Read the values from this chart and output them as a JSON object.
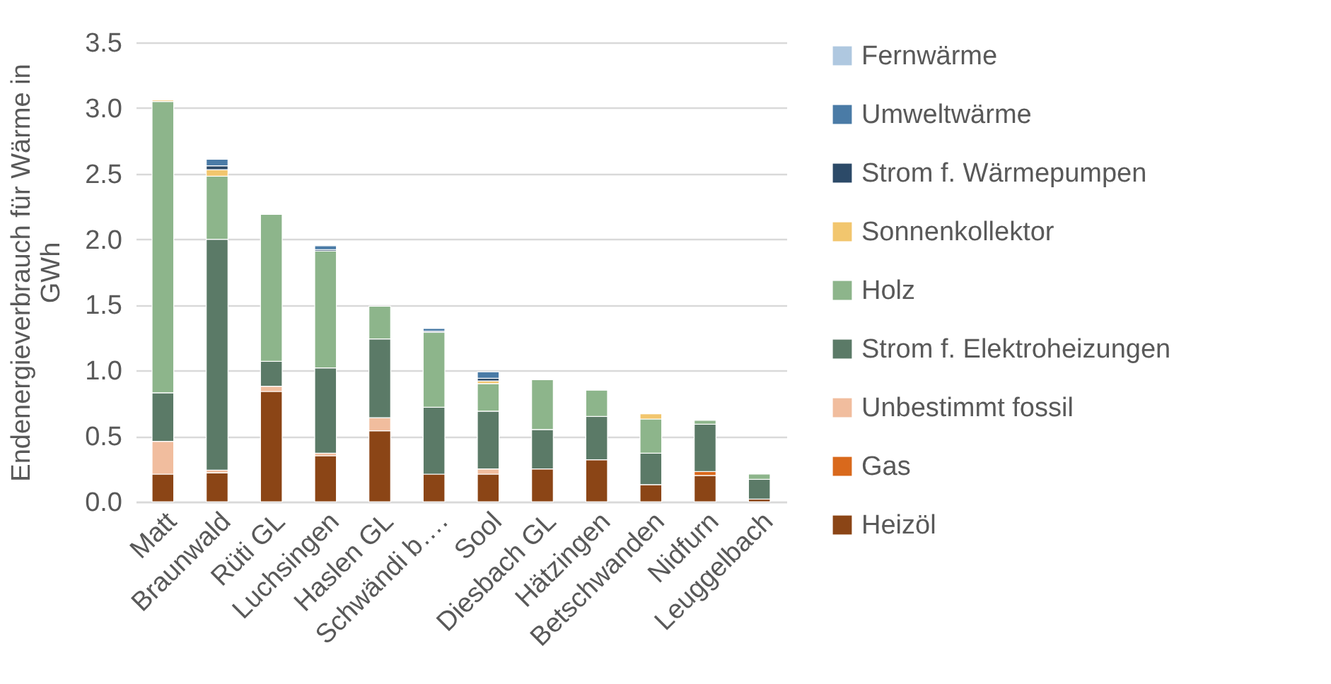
{
  "chart_data": {
    "type": "bar",
    "stacked": true,
    "ylabel": "Endenergieverbrauch für Wärme in GWh",
    "categories": [
      "Matt",
      "Braunwald",
      "Rüti GL",
      "Luchsingen",
      "Haslen GL",
      "Schwändi b….",
      "Sool",
      "Diesbach GL",
      "Hätzingen",
      "Betschwanden",
      "Nidfurn",
      "Leuggelbach"
    ],
    "series": [
      {
        "name": "Heizöl",
        "color": "#8b4516",
        "values": [
          0.21,
          0.22,
          0.84,
          0.35,
          0.54,
          0.21,
          0.21,
          0.25,
          0.32,
          0.13,
          0.2,
          0.02
        ]
      },
      {
        "name": "Gas",
        "color": "#d9691c",
        "values": [
          null,
          null,
          null,
          null,
          null,
          null,
          null,
          null,
          null,
          null,
          0.03,
          null
        ]
      },
      {
        "name": "Unbestimmt fossil",
        "color": "#f1bd9e",
        "values": [
          0.25,
          0.02,
          0.04,
          0.02,
          0.1,
          null,
          0.04,
          null,
          null,
          null,
          null,
          null
        ]
      },
      {
        "name": "Strom f. Elektroheizungen",
        "color": "#5b7a67",
        "values": [
          0.37,
          1.76,
          0.19,
          0.65,
          0.6,
          0.51,
          0.44,
          0.3,
          0.33,
          0.24,
          0.36,
          0.15
        ]
      },
      {
        "name": "Holz",
        "color": "#8db58b",
        "values": [
          2.22,
          0.48,
          1.12,
          0.89,
          0.25,
          0.57,
          0.21,
          0.38,
          0.2,
          0.26,
          0.03,
          0.04
        ]
      },
      {
        "name": "Sonnenkollektor",
        "color": "#f2c66e",
        "values": [
          0.01,
          0.05,
          null,
          null,
          null,
          null,
          0.02,
          null,
          null,
          0.04,
          null,
          null
        ]
      },
      {
        "name": "Strom f. Wärmepumpen",
        "color": "#2c4a68",
        "values": [
          null,
          0.03,
          null,
          0.01,
          null,
          0.01,
          0.02,
          null,
          null,
          null,
          null,
          null
        ]
      },
      {
        "name": "Umweltwärme",
        "color": "#4a7ba6",
        "values": [
          null,
          0.05,
          null,
          0.03,
          null,
          0.02,
          0.05,
          null,
          null,
          null,
          null,
          null
        ]
      },
      {
        "name": "Fernwärme",
        "color": "#afc8e0",
        "values": [
          null,
          null,
          null,
          null,
          null,
          null,
          null,
          null,
          null,
          null,
          null,
          null
        ]
      }
    ],
    "ylim": [
      0,
      3.5
    ],
    "yticks": [
      {
        "value": 0,
        "label": "0.0"
      },
      0.5,
      {
        "value": 1,
        "label": "1.0"
      },
      1.5,
      {
        "value": 2,
        "label": "2.0"
      },
      2.5,
      {
        "value": 3,
        "label": "3.0"
      },
      3.5
    ],
    "grid": "y",
    "legend": "right"
  }
}
